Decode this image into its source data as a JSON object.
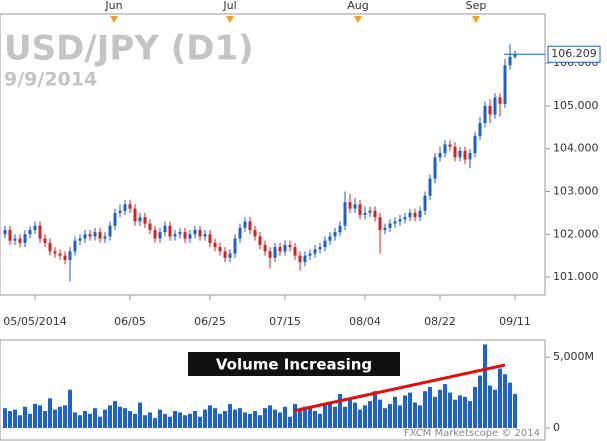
{
  "title": "USD/JPY (D1)",
  "subtitle": "9/9/2014",
  "month_markers": [
    "Jun",
    "Jul",
    "Aug",
    "Sep"
  ],
  "chart_data": [
    {
      "type": "candlestick",
      "categories": [
        null,
        null,
        null,
        null,
        null,
        null,
        "05/05/2014",
        null,
        null,
        null,
        null,
        null,
        null,
        null,
        null,
        null,
        null,
        null,
        null,
        null,
        null,
        null,
        null,
        null,
        null,
        "06/05",
        null,
        null,
        null,
        null,
        null,
        null,
        null,
        null,
        null,
        null,
        null,
        null,
        null,
        null,
        null,
        "06/25",
        null,
        null,
        null,
        null,
        null,
        null,
        null,
        null,
        null,
        null,
        null,
        null,
        null,
        null,
        "07/15",
        null,
        null,
        null,
        null,
        null,
        null,
        null,
        null,
        null,
        null,
        null,
        null,
        null,
        null,
        null,
        "08/04",
        null,
        null,
        null,
        null,
        null,
        null,
        null,
        null,
        null,
        null,
        null,
        null,
        null,
        null,
        "08/22",
        null,
        null,
        null,
        null,
        null,
        null,
        null,
        null,
        null,
        null,
        null,
        null,
        null,
        null,
        "09/11"
      ],
      "open": [
        102.0,
        102.1,
        101.85,
        101.9,
        101.8,
        102.0,
        102.1,
        102.2,
        101.9,
        101.8,
        101.6,
        101.55,
        101.5,
        101.4,
        101.6,
        101.85,
        101.9,
        102.0,
        101.95,
        102.05,
        101.9,
        101.95,
        102.2,
        102.5,
        102.55,
        102.7,
        102.6,
        102.3,
        102.4,
        102.25,
        102.1,
        101.9,
        102.05,
        102.2,
        101.95,
        102.0,
        102.05,
        101.9,
        102.0,
        102.1,
        101.95,
        102.0,
        101.8,
        101.7,
        101.6,
        101.45,
        101.55,
        101.9,
        102.15,
        102.3,
        102.1,
        101.95,
        101.75,
        101.6,
        101.45,
        101.7,
        101.6,
        101.75,
        101.7,
        101.5,
        101.35,
        101.5,
        101.55,
        101.65,
        101.7,
        101.85,
        101.95,
        102.05,
        102.2,
        102.75,
        102.6,
        102.7,
        102.45,
        102.5,
        102.55,
        102.4,
        102.1,
        102.15,
        102.25,
        102.3,
        102.35,
        102.4,
        102.5,
        102.4,
        102.55,
        102.9,
        103.3,
        103.8,
        103.9,
        104.1,
        104.05,
        103.8,
        103.95,
        103.75,
        103.9,
        104.3,
        104.6,
        105.0,
        104.8,
        105.2,
        105.05,
        105.95,
        106.15
      ],
      "high": [
        102.2,
        102.2,
        102.0,
        102.0,
        102.1,
        102.2,
        102.3,
        102.3,
        102.0,
        101.9,
        101.7,
        101.65,
        101.6,
        101.7,
        101.95,
        102.0,
        102.1,
        102.1,
        102.15,
        102.15,
        102.05,
        102.3,
        102.6,
        102.7,
        102.8,
        102.8,
        102.7,
        102.5,
        102.5,
        102.35,
        102.2,
        102.15,
        102.3,
        102.3,
        102.1,
        102.15,
        102.15,
        102.1,
        102.2,
        102.2,
        102.1,
        102.1,
        101.9,
        101.8,
        101.7,
        101.65,
        102.0,
        102.25,
        102.4,
        102.4,
        102.2,
        102.05,
        101.85,
        101.7,
        101.8,
        101.8,
        101.85,
        101.85,
        101.8,
        101.6,
        101.6,
        101.65,
        101.75,
        101.8,
        101.95,
        102.05,
        102.15,
        102.3,
        103.0,
        102.95,
        102.85,
        102.8,
        102.65,
        102.65,
        102.65,
        102.5,
        102.25,
        102.35,
        102.4,
        102.45,
        102.5,
        102.6,
        102.6,
        102.65,
        103.0,
        103.4,
        103.9,
        104.05,
        104.2,
        104.2,
        104.15,
        104.05,
        104.05,
        104.0,
        104.4,
        104.75,
        105.1,
        105.15,
        105.3,
        105.3,
        106.1,
        106.45,
        106.3
      ],
      "low": [
        101.9,
        101.75,
        101.75,
        101.7,
        101.7,
        101.9,
        102.0,
        101.8,
        101.7,
        101.5,
        101.45,
        101.4,
        101.3,
        100.9,
        101.5,
        101.75,
        101.8,
        101.85,
        101.85,
        101.8,
        101.8,
        101.85,
        102.1,
        102.4,
        102.45,
        102.5,
        102.2,
        102.2,
        102.15,
        102.0,
        101.8,
        101.8,
        101.95,
        101.85,
        101.85,
        101.9,
        101.8,
        101.8,
        101.9,
        101.85,
        101.85,
        101.7,
        101.6,
        101.5,
        101.35,
        101.35,
        101.45,
        101.8,
        102.05,
        102.0,
        101.85,
        101.65,
        101.5,
        101.2,
        101.35,
        101.5,
        101.5,
        101.6,
        101.4,
        101.15,
        101.25,
        101.4,
        101.45,
        101.55,
        101.6,
        101.75,
        101.85,
        101.95,
        102.1,
        102.5,
        102.5,
        102.35,
        102.35,
        102.4,
        102.3,
        101.55,
        102.0,
        102.05,
        102.15,
        102.2,
        102.25,
        102.3,
        102.3,
        102.3,
        102.45,
        102.8,
        103.2,
        103.7,
        103.8,
        103.95,
        103.7,
        103.7,
        103.65,
        103.55,
        103.8,
        104.2,
        104.5,
        104.6,
        104.7,
        104.75,
        104.95,
        105.85,
        106.1
      ],
      "close": [
        102.1,
        101.85,
        101.9,
        101.8,
        102.0,
        102.1,
        102.2,
        101.9,
        101.8,
        101.6,
        101.55,
        101.5,
        101.4,
        101.6,
        101.85,
        101.9,
        102.0,
        101.95,
        102.05,
        101.9,
        101.95,
        102.2,
        102.5,
        102.55,
        102.7,
        102.6,
        102.3,
        102.4,
        102.25,
        102.1,
        101.9,
        102.05,
        102.2,
        101.95,
        102.0,
        102.05,
        101.9,
        102.0,
        102.1,
        101.95,
        102.0,
        101.8,
        101.7,
        101.6,
        101.45,
        101.55,
        101.9,
        102.15,
        102.3,
        102.1,
        101.95,
        101.75,
        101.6,
        101.45,
        101.7,
        101.6,
        101.75,
        101.7,
        101.5,
        101.35,
        101.5,
        101.55,
        101.65,
        101.7,
        101.85,
        101.95,
        102.05,
        102.2,
        102.75,
        102.6,
        102.7,
        102.45,
        102.5,
        102.55,
        102.4,
        102.1,
        102.15,
        102.25,
        102.3,
        102.35,
        102.4,
        102.5,
        102.4,
        102.55,
        102.9,
        103.3,
        103.8,
        103.9,
        104.1,
        104.05,
        103.8,
        103.95,
        103.75,
        103.9,
        104.3,
        104.6,
        105.0,
        104.8,
        105.2,
        105.05,
        105.95,
        106.15,
        106.209
      ],
      "up_color": "#1f5fc8",
      "down_color": "#d42020",
      "ylim": [
        100.58,
        107.15
      ],
      "yticks": [
        {
          "value": 101,
          "label": "101.000"
        },
        {
          "value": 102,
          "label": "102.000"
        },
        {
          "value": 103,
          "label": "103.000"
        },
        {
          "value": 104,
          "label": "104.000"
        },
        {
          "value": 105,
          "label": "105.000"
        },
        {
          "value": 106,
          "label": "106.000"
        }
      ]
    },
    {
      "type": "bar",
      "name": "Volume",
      "annotation": "Volume Increasing",
      "credit": "FXCM Marketscope © 2014",
      "color": "#1e64c8",
      "values": [
        1400,
        1200,
        1300,
        900,
        1500,
        1000,
        1700,
        1600,
        1200,
        2100,
        1300,
        1500,
        1600,
        2700,
        1100,
        900,
        1200,
        1000,
        1400,
        800,
        1300,
        1600,
        1900,
        1500,
        1400,
        1200,
        1000,
        1800,
        900,
        1100,
        700,
        1300,
        1000,
        800,
        1200,
        1100,
        900,
        1000,
        1200,
        800,
        1300,
        1600,
        1400,
        1000,
        1200,
        1700,
        1300,
        1400,
        1100,
        1000,
        1200,
        900,
        1400,
        1600,
        1300,
        1100,
        1500,
        800,
        1700,
        1300,
        1500,
        1400,
        1200,
        1000,
        1600,
        1800,
        1500,
        2400,
        1500,
        2000,
        1800,
        1300,
        1600,
        1900,
        2600,
        2000,
        1400,
        1700,
        2200,
        1600,
        2300,
        2500,
        1800,
        1600,
        2600,
        2900,
        2200,
        2700,
        3100,
        2500,
        2000,
        2300,
        2200,
        1900,
        2900,
        3700,
        5900,
        3000,
        2700,
        4200,
        3800,
        3200,
        2400
      ],
      "ylim": [
        0,
        6000
      ],
      "yticks": [
        0,
        {
          "value": 5000,
          "label": "5,000M"
        }
      ]
    }
  ]
}
